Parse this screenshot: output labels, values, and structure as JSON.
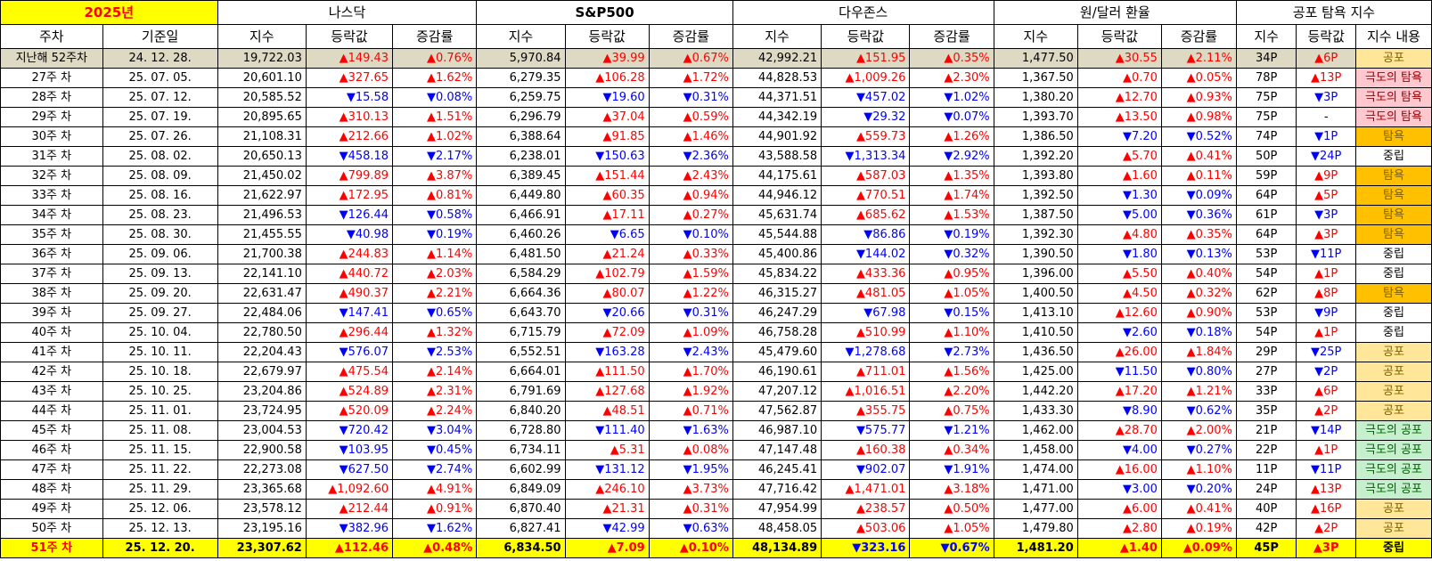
{
  "year_title": "2025년",
  "groups": [
    "나스닥",
    "S&P500",
    "다우존스",
    "원/달러 환율",
    "공포 탐욕 지수"
  ],
  "headers": [
    "주차",
    "기준일",
    "지수",
    "등락값",
    "증감률",
    "지수",
    "등락값",
    "증감률",
    "지수",
    "등락값",
    "증감률",
    "지수",
    "등락값",
    "증감률",
    "지수",
    "등락값",
    "지수 내용"
  ],
  "colors": {
    "up": "#ff0000",
    "down": "#0000ff",
    "highlight": "#ffff00",
    "prev_row": "#ddd9c3",
    "fear": "#ffe699",
    "greed": "#ffc000",
    "extreme_fear": "#c6efce",
    "extreme_greed": "#ffc7ce"
  },
  "rows": [
    {
      "week": "지난해 52주차",
      "date": "24. 12. 28.",
      "nq": "19,722.03",
      "nq_chg": "▲149.43",
      "nq_pct": "▲0.76%",
      "sp": "5,970.84",
      "sp_chg": "▲39.99",
      "sp_pct": "▲0.67%",
      "dj": "42,992.21",
      "dj_chg": "▲151.95",
      "dj_pct": "▲0.35%",
      "fx": "1,477.50",
      "fx_chg": "▲30.55",
      "fx_pct": "▲2.11%",
      "fg": "34P",
      "fg_chg": "▲6P",
      "fg_desc": "공포",
      "fg_class": "fear"
    },
    {
      "week": "27주 차",
      "date": "25. 07. 05.",
      "nq": "20,601.10",
      "nq_chg": "▲327.65",
      "nq_pct": "▲1.62%",
      "sp": "6,279.35",
      "sp_chg": "▲106.28",
      "sp_pct": "▲1.72%",
      "dj": "44,828.53",
      "dj_chg": "▲1,009.26",
      "dj_pct": "▲2.30%",
      "fx": "1,367.50",
      "fx_chg": "▲0.70",
      "fx_pct": "▲0.05%",
      "fg": "78P",
      "fg_chg": "▲13P",
      "fg_desc": "극도의 탐욕",
      "fg_class": "xgreed"
    },
    {
      "week": "28주 차",
      "date": "25. 07. 12.",
      "nq": "20,585.52",
      "nq_chg": "▼15.58",
      "nq_pct": "▼0.08%",
      "sp": "6,259.75",
      "sp_chg": "▼19.60",
      "sp_pct": "▼0.31%",
      "dj": "44,371.51",
      "dj_chg": "▼457.02",
      "dj_pct": "▼1.02%",
      "fx": "1,380.20",
      "fx_chg": "▲12.70",
      "fx_pct": "▲0.93%",
      "fg": "75P",
      "fg_chg": "▼3P",
      "fg_desc": "극도의 탐욕",
      "fg_class": "xgreed"
    },
    {
      "week": "29주 차",
      "date": "25. 07. 19.",
      "nq": "20,895.65",
      "nq_chg": "▲310.13",
      "nq_pct": "▲1.51%",
      "sp": "6,296.79",
      "sp_chg": "▲37.04",
      "sp_pct": "▲0.59%",
      "dj": "44,342.19",
      "dj_chg": "▼29.32",
      "dj_pct": "▼0.07%",
      "fx": "1,393.70",
      "fx_chg": "▲13.50",
      "fx_pct": "▲0.98%",
      "fg": "75P",
      "fg_chg": "-",
      "fg_desc": "극도의 탐욕",
      "fg_class": "xgreed"
    },
    {
      "week": "30주 차",
      "date": "25. 07. 26.",
      "nq": "21,108.31",
      "nq_chg": "▲212.66",
      "nq_pct": "▲1.02%",
      "sp": "6,388.64",
      "sp_chg": "▲91.85",
      "sp_pct": "▲1.46%",
      "dj": "44,901.92",
      "dj_chg": "▲559.73",
      "dj_pct": "▲1.26%",
      "fx": "1,386.50",
      "fx_chg": "▼7.20",
      "fx_pct": "▼0.52%",
      "fg": "74P",
      "fg_chg": "▼1P",
      "fg_desc": "탐욕",
      "fg_class": "greed"
    },
    {
      "week": "31주 차",
      "date": "25. 08. 02.",
      "nq": "20,650.13",
      "nq_chg": "▼458.18",
      "nq_pct": "▼2.17%",
      "sp": "6,238.01",
      "sp_chg": "▼150.63",
      "sp_pct": "▼2.36%",
      "dj": "43,588.58",
      "dj_chg": "▼1,313.34",
      "dj_pct": "▼2.92%",
      "fx": "1,392.20",
      "fx_chg": "▲5.70",
      "fx_pct": "▲0.41%",
      "fg": "50P",
      "fg_chg": "▼24P",
      "fg_desc": "중립",
      "fg_class": "neutral"
    },
    {
      "week": "32주 차",
      "date": "25. 08. 09.",
      "nq": "21,450.02",
      "nq_chg": "▲799.89",
      "nq_pct": "▲3.87%",
      "sp": "6,389.45",
      "sp_chg": "▲151.44",
      "sp_pct": "▲2.43%",
      "dj": "44,175.61",
      "dj_chg": "▲587.03",
      "dj_pct": "▲1.35%",
      "fx": "1,393.80",
      "fx_chg": "▲1.60",
      "fx_pct": "▲0.11%",
      "fg": "59P",
      "fg_chg": "▲9P",
      "fg_desc": "탐욕",
      "fg_class": "greed"
    },
    {
      "week": "33주 차",
      "date": "25. 08. 16.",
      "nq": "21,622.97",
      "nq_chg": "▲172.95",
      "nq_pct": "▲0.81%",
      "sp": "6,449.80",
      "sp_chg": "▲60.35",
      "sp_pct": "▲0.94%",
      "dj": "44,946.12",
      "dj_chg": "▲770.51",
      "dj_pct": "▲1.74%",
      "fx": "1,392.50",
      "fx_chg": "▼1.30",
      "fx_pct": "▼0.09%",
      "fg": "64P",
      "fg_chg": "▲5P",
      "fg_desc": "탐욕",
      "fg_class": "greed"
    },
    {
      "week": "34주 차",
      "date": "25. 08. 23.",
      "nq": "21,496.53",
      "nq_chg": "▼126.44",
      "nq_pct": "▼0.58%",
      "sp": "6,466.91",
      "sp_chg": "▲17.11",
      "sp_pct": "▲0.27%",
      "dj": "45,631.74",
      "dj_chg": "▲685.62",
      "dj_pct": "▲1.53%",
      "fx": "1,387.50",
      "fx_chg": "▼5.00",
      "fx_pct": "▼0.36%",
      "fg": "61P",
      "fg_chg": "▼3P",
      "fg_desc": "탐욕",
      "fg_class": "greed"
    },
    {
      "week": "35주 차",
      "date": "25. 08. 30.",
      "nq": "21,455.55",
      "nq_chg": "▼40.98",
      "nq_pct": "▼0.19%",
      "sp": "6,460.26",
      "sp_chg": "▼6.65",
      "sp_pct": "▼0.10%",
      "dj": "45,544.88",
      "dj_chg": "▼86.86",
      "dj_pct": "▼0.19%",
      "fx": "1,392.30",
      "fx_chg": "▲4.80",
      "fx_pct": "▲0.35%",
      "fg": "64P",
      "fg_chg": "▲3P",
      "fg_desc": "탐욕",
      "fg_class": "greed"
    },
    {
      "week": "36주 차",
      "date": "25. 09. 06.",
      "nq": "21,700.38",
      "nq_chg": "▲244.83",
      "nq_pct": "▲1.14%",
      "sp": "6,481.50",
      "sp_chg": "▲21.24",
      "sp_pct": "▲0.33%",
      "dj": "45,400.86",
      "dj_chg": "▼144.02",
      "dj_pct": "▼0.32%",
      "fx": "1,390.50",
      "fx_chg": "▼1.80",
      "fx_pct": "▼0.13%",
      "fg": "53P",
      "fg_chg": "▼11P",
      "fg_desc": "중립",
      "fg_class": "neutral"
    },
    {
      "week": "37주 차",
      "date": "25. 09. 13.",
      "nq": "22,141.10",
      "nq_chg": "▲440.72",
      "nq_pct": "▲2.03%",
      "sp": "6,584.29",
      "sp_chg": "▲102.79",
      "sp_pct": "▲1.59%",
      "dj": "45,834.22",
      "dj_chg": "▲433.36",
      "dj_pct": "▲0.95%",
      "fx": "1,396.00",
      "fx_chg": "▲5.50",
      "fx_pct": "▲0.40%",
      "fg": "54P",
      "fg_chg": "▲1P",
      "fg_desc": "중립",
      "fg_class": "neutral"
    },
    {
      "week": "38주 차",
      "date": "25. 09. 20.",
      "nq": "22,631.47",
      "nq_chg": "▲490.37",
      "nq_pct": "▲2.21%",
      "sp": "6,664.36",
      "sp_chg": "▲80.07",
      "sp_pct": "▲1.22%",
      "dj": "46,315.27",
      "dj_chg": "▲481.05",
      "dj_pct": "▲1.05%",
      "fx": "1,400.50",
      "fx_chg": "▲4.50",
      "fx_pct": "▲0.32%",
      "fg": "62P",
      "fg_chg": "▲8P",
      "fg_desc": "탐욕",
      "fg_class": "greed"
    },
    {
      "week": "39주 차",
      "date": "25. 09. 27.",
      "nq": "22,484.06",
      "nq_chg": "▼147.41",
      "nq_pct": "▼0.65%",
      "sp": "6,643.70",
      "sp_chg": "▼20.66",
      "sp_pct": "▼0.31%",
      "dj": "46,247.29",
      "dj_chg": "▼67.98",
      "dj_pct": "▼0.15%",
      "fx": "1,413.10",
      "fx_chg": "▲12.60",
      "fx_pct": "▲0.90%",
      "fg": "53P",
      "fg_chg": "▼9P",
      "fg_desc": "중립",
      "fg_class": "neutral"
    },
    {
      "week": "40주 차",
      "date": "25. 10. 04.",
      "nq": "22,780.50",
      "nq_chg": "▲296.44",
      "nq_pct": "▲1.32%",
      "sp": "6,715.79",
      "sp_chg": "▲72.09",
      "sp_pct": "▲1.09%",
      "dj": "46,758.28",
      "dj_chg": "▲510.99",
      "dj_pct": "▲1.10%",
      "fx": "1,410.50",
      "fx_chg": "▼2.60",
      "fx_pct": "▼0.18%",
      "fg": "54P",
      "fg_chg": "▲1P",
      "fg_desc": "중립",
      "fg_class": "neutral"
    },
    {
      "week": "41주 차",
      "date": "25. 10. 11.",
      "nq": "22,204.43",
      "nq_chg": "▼576.07",
      "nq_pct": "▼2.53%",
      "sp": "6,552.51",
      "sp_chg": "▼163.28",
      "sp_pct": "▼2.43%",
      "dj": "45,479.60",
      "dj_chg": "▼1,278.68",
      "dj_pct": "▼2.73%",
      "fx": "1,436.50",
      "fx_chg": "▲26.00",
      "fx_pct": "▲1.84%",
      "fg": "29P",
      "fg_chg": "▼25P",
      "fg_desc": "공포",
      "fg_class": "fear"
    },
    {
      "week": "42주 차",
      "date": "25. 10. 18.",
      "nq": "22,679.97",
      "nq_chg": "▲475.54",
      "nq_pct": "▲2.14%",
      "sp": "6,664.01",
      "sp_chg": "▲111.50",
      "sp_pct": "▲1.70%",
      "dj": "46,190.61",
      "dj_chg": "▲711.01",
      "dj_pct": "▲1.56%",
      "fx": "1,425.00",
      "fx_chg": "▼11.50",
      "fx_pct": "▼0.80%",
      "fg": "27P",
      "fg_chg": "▼2P",
      "fg_desc": "공포",
      "fg_class": "fear"
    },
    {
      "week": "43주 차",
      "date": "25. 10. 25.",
      "nq": "23,204.86",
      "nq_chg": "▲524.89",
      "nq_pct": "▲2.31%",
      "sp": "6,791.69",
      "sp_chg": "▲127.68",
      "sp_pct": "▲1.92%",
      "dj": "47,207.12",
      "dj_chg": "▲1,016.51",
      "dj_pct": "▲2.20%",
      "fx": "1,442.20",
      "fx_chg": "▲17.20",
      "fx_pct": "▲1.21%",
      "fg": "33P",
      "fg_chg": "▲6P",
      "fg_desc": "공포",
      "fg_class": "fear"
    },
    {
      "week": "44주 차",
      "date": "25. 11. 01.",
      "nq": "23,724.95",
      "nq_chg": "▲520.09",
      "nq_pct": "▲2.24%",
      "sp": "6,840.20",
      "sp_chg": "▲48.51",
      "sp_pct": "▲0.71%",
      "dj": "47,562.87",
      "dj_chg": "▲355.75",
      "dj_pct": "▲0.75%",
      "fx": "1,433.30",
      "fx_chg": "▼8.90",
      "fx_pct": "▼0.62%",
      "fg": "35P",
      "fg_chg": "▲2P",
      "fg_desc": "공포",
      "fg_class": "fear"
    },
    {
      "week": "45주 차",
      "date": "25. 11. 08.",
      "nq": "23,004.53",
      "nq_chg": "▼720.42",
      "nq_pct": "▼3.04%",
      "sp": "6,728.80",
      "sp_chg": "▼111.40",
      "sp_pct": "▼1.63%",
      "dj": "46,987.10",
      "dj_chg": "▼575.77",
      "dj_pct": "▼1.21%",
      "fx": "1,462.00",
      "fx_chg": "▲28.70",
      "fx_pct": "▲2.00%",
      "fg": "21P",
      "fg_chg": "▼14P",
      "fg_desc": "극도의 공포",
      "fg_class": "xfear"
    },
    {
      "week": "46주 차",
      "date": "25. 11. 15.",
      "nq": "22,900.58",
      "nq_chg": "▼103.95",
      "nq_pct": "▼0.45%",
      "sp": "6,734.11",
      "sp_chg": "▲5.31",
      "sp_pct": "▲0.08%",
      "dj": "47,147.48",
      "dj_chg": "▲160.38",
      "dj_pct": "▲0.34%",
      "fx": "1,458.00",
      "fx_chg": "▼4.00",
      "fx_pct": "▼0.27%",
      "fg": "22P",
      "fg_chg": "▲1P",
      "fg_desc": "극도의 공포",
      "fg_class": "xfear"
    },
    {
      "week": "47주 차",
      "date": "25. 11. 22.",
      "nq": "22,273.08",
      "nq_chg": "▼627.50",
      "nq_pct": "▼2.74%",
      "sp": "6,602.99",
      "sp_chg": "▼131.12",
      "sp_pct": "▼1.95%",
      "dj": "46,245.41",
      "dj_chg": "▼902.07",
      "dj_pct": "▼1.91%",
      "fx": "1,474.00",
      "fx_chg": "▲16.00",
      "fx_pct": "▲1.10%",
      "fg": "11P",
      "fg_chg": "▼11P",
      "fg_desc": "극도의 공포",
      "fg_class": "xfear"
    },
    {
      "week": "48주 차",
      "date": "25. 11. 29.",
      "nq": "23,365.68",
      "nq_chg": "▲1,092.60",
      "nq_pct": "▲4.91%",
      "sp": "6,849.09",
      "sp_chg": "▲246.10",
      "sp_pct": "▲3.73%",
      "dj": "47,716.42",
      "dj_chg": "▲1,471.01",
      "dj_pct": "▲3.18%",
      "fx": "1,471.00",
      "fx_chg": "▼3.00",
      "fx_pct": "▼0.20%",
      "fg": "24P",
      "fg_chg": "▲13P",
      "fg_desc": "극도의 공포",
      "fg_class": "xfear"
    },
    {
      "week": "49주 차",
      "date": "25. 12. 06.",
      "nq": "23,578.12",
      "nq_chg": "▲212.44",
      "nq_pct": "▲0.91%",
      "sp": "6,870.40",
      "sp_chg": "▲21.31",
      "sp_pct": "▲0.31%",
      "dj": "47,954.99",
      "dj_chg": "▲238.57",
      "dj_pct": "▲0.50%",
      "fx": "1,477.00",
      "fx_chg": "▲6.00",
      "fx_pct": "▲0.41%",
      "fg": "40P",
      "fg_chg": "▲16P",
      "fg_desc": "공포",
      "fg_class": "fear"
    },
    {
      "week": "50주 차",
      "date": "25. 12. 13.",
      "nq": "23,195.16",
      "nq_chg": "▼382.96",
      "nq_pct": "▼1.62%",
      "sp": "6,827.41",
      "sp_chg": "▼42.99",
      "sp_pct": "▼0.63%",
      "dj": "48,458.05",
      "dj_chg": "▲503.06",
      "dj_pct": "▲1.05%",
      "fx": "1,479.80",
      "fx_chg": "▲2.80",
      "fx_pct": "▲0.19%",
      "fg": "42P",
      "fg_chg": "▲2P",
      "fg_desc": "공포",
      "fg_class": "fear"
    },
    {
      "week": "51주 차",
      "date": "25. 12. 20.",
      "nq": "23,307.62",
      "nq_chg": "▲112.46",
      "nq_pct": "▲0.48%",
      "sp": "6,834.50",
      "sp_chg": "▲7.09",
      "sp_pct": "▲0.10%",
      "dj": "48,134.89",
      "dj_chg": "▼323.16",
      "dj_pct": "▼0.67%",
      "fx": "1,481.20",
      "fx_chg": "▲1.40",
      "fx_pct": "▲0.09%",
      "fg": "45P",
      "fg_chg": "▲3P",
      "fg_desc": "중립",
      "fg_class": "neutral"
    }
  ]
}
